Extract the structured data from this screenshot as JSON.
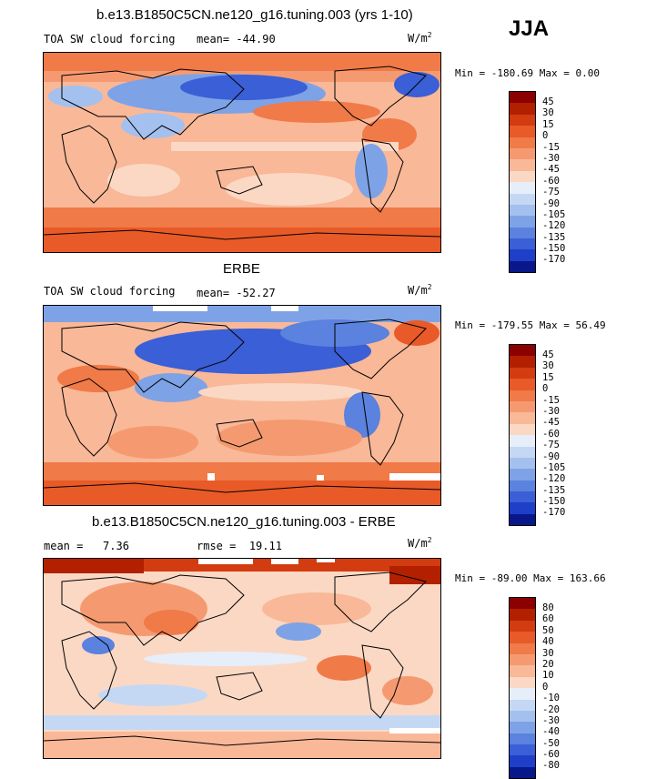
{
  "season": "JJA",
  "panels": [
    {
      "title": "b.e13.B1850C5CN.ne120_g16.tuning.003 (yrs 1-10)",
      "left_label": "TOA SW cloud forcing",
      "stat_label": "mean=",
      "stat_value": "-44.90",
      "units": "W/m",
      "units_sup": "2",
      "minmax": "Min = -180.69 Max =   0.00",
      "colorbar": {
        "levels": [
          "45",
          "30",
          "15",
          "0",
          "-15",
          "-30",
          "-45",
          "-60",
          "-75",
          "-90",
          "-105",
          "-120",
          "-135",
          "-150",
          "-170"
        ],
        "colors": [
          "#8b0000",
          "#b22000",
          "#d23c10",
          "#e85a28",
          "#f07a48",
          "#f59a70",
          "#f9b898",
          "#fbd8c4",
          "#e6eefa",
          "#c4d8f4",
          "#a4c0ee",
          "#7ea2e6",
          "#5a82de",
          "#3a5fd6",
          "#1f3fc8",
          "#08188a"
        ]
      }
    },
    {
      "title": "ERBE",
      "left_label": "TOA SW cloud forcing",
      "stat_label": "mean=",
      "stat_value": "-52.27",
      "units": "W/m",
      "units_sup": "2",
      "minmax": "Min = -179.55 Max =  56.49",
      "colorbar": {
        "levels": [
          "45",
          "30",
          "15",
          "0",
          "-15",
          "-30",
          "-45",
          "-60",
          "-75",
          "-90",
          "-105",
          "-120",
          "-135",
          "-150",
          "-170"
        ],
        "colors": [
          "#8b0000",
          "#b22000",
          "#d23c10",
          "#e85a28",
          "#f07a48",
          "#f59a70",
          "#f9b898",
          "#fbd8c4",
          "#e6eefa",
          "#c4d8f4",
          "#a4c0ee",
          "#7ea2e6",
          "#5a82de",
          "#3a5fd6",
          "#1f3fc8",
          "#08188a"
        ]
      }
    },
    {
      "title": "b.e13.B1850C5CN.ne120_g16.tuning.003 - ERBE",
      "left_label": "mean =",
      "left_value": "7.36",
      "stat_label": "rmse =",
      "stat_value": "19.11",
      "units": "W/m",
      "units_sup": "2",
      "minmax": "Min = -89.00 Max = 163.66",
      "colorbar": {
        "levels": [
          "80",
          "60",
          "50",
          "40",
          "30",
          "20",
          "10",
          "0",
          "-10",
          "-20",
          "-30",
          "-40",
          "-50",
          "-60",
          "-80"
        ],
        "colors": [
          "#8b0000",
          "#b22000",
          "#d23c10",
          "#e85a28",
          "#f07a48",
          "#f59a70",
          "#f9b898",
          "#fbd8c4",
          "#e6eefa",
          "#c4d8f4",
          "#a4c0ee",
          "#7ea2e6",
          "#5a82de",
          "#3a5fd6",
          "#1f3fc8",
          "#08188a"
        ]
      }
    }
  ]
}
